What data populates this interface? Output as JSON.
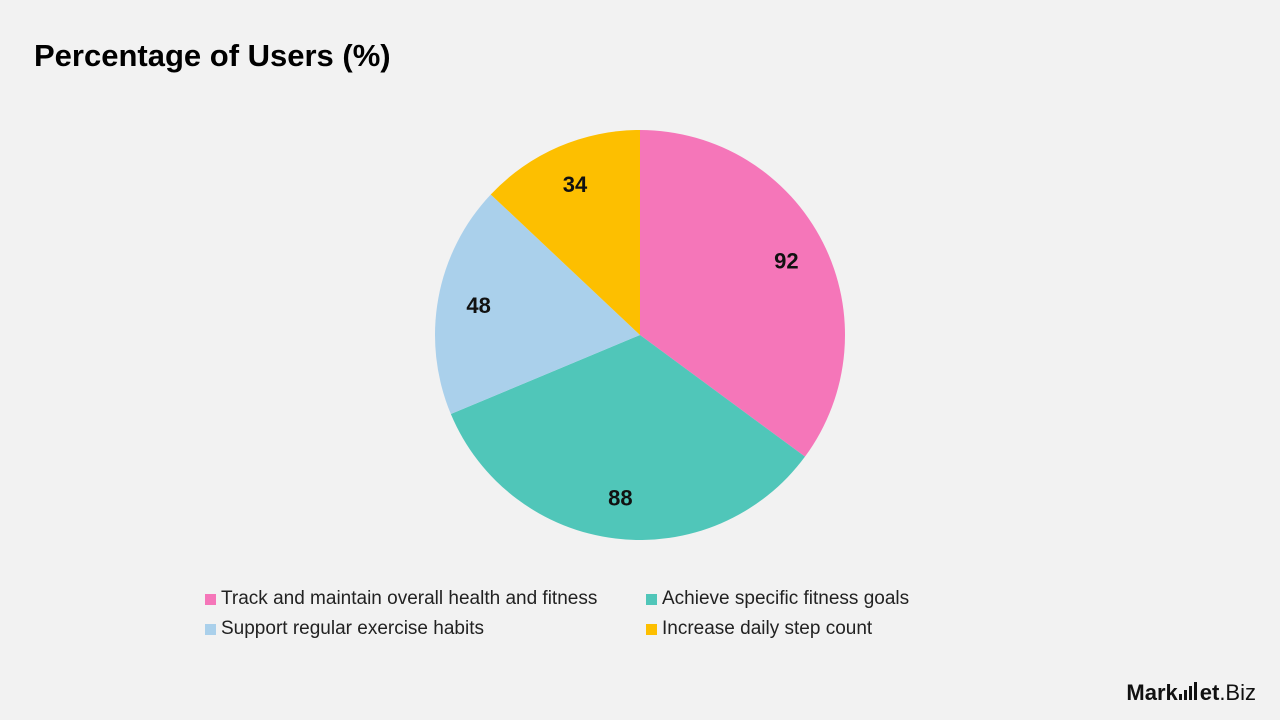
{
  "header": {
    "title": "Percentage of Users (%)"
  },
  "chart_data": {
    "type": "pie",
    "title": "Percentage of Users (%)",
    "slices": [
      {
        "label": "Track and maintain overall health and fitness",
        "value": 92,
        "color": "#f576b9"
      },
      {
        "label": "Achieve specific fitness goals",
        "value": 88,
        "color": "#50c6b9"
      },
      {
        "label": "Support regular exercise habits",
        "value": 48,
        "color": "#aad0eb"
      },
      {
        "label": "Increase daily step count",
        "value": 34,
        "color": "#fdbf00"
      }
    ],
    "legend_position": "bottom"
  },
  "brand": {
    "name_bold": "Mark",
    "name_mid": "et",
    "name_rest": ".Biz"
  }
}
